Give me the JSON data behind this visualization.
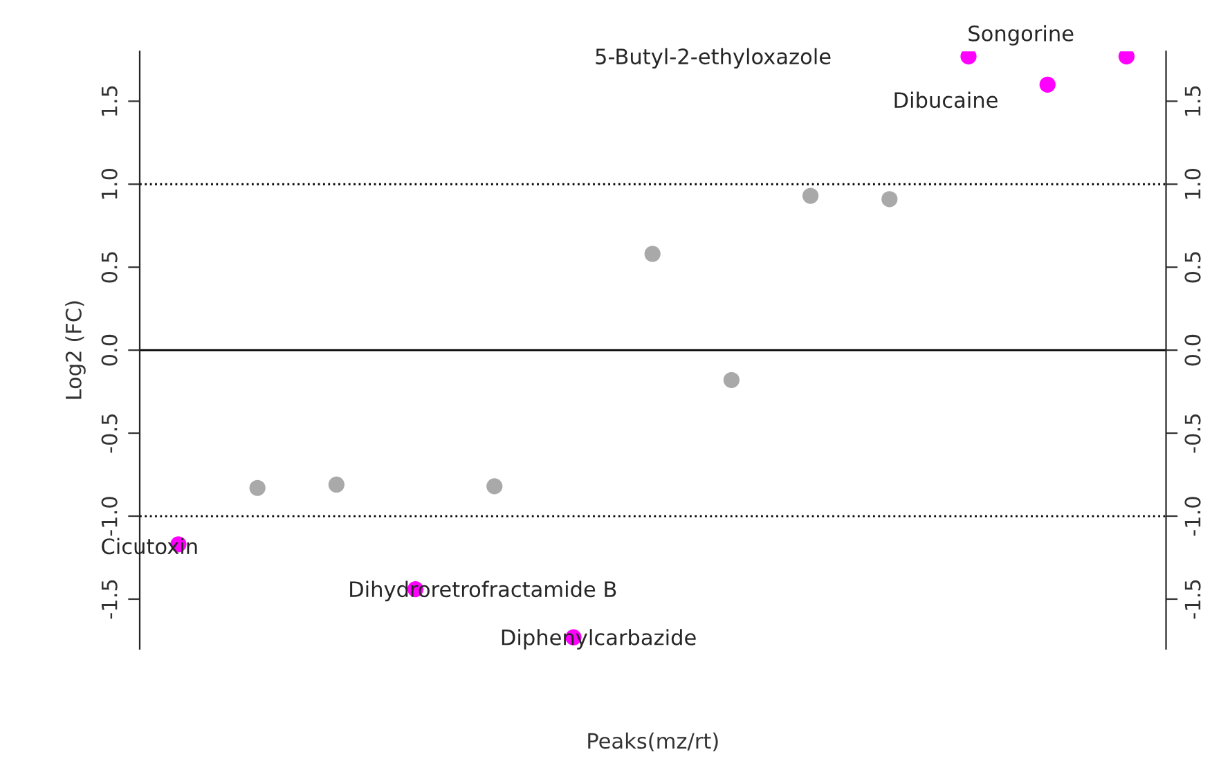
{
  "chart_data": {
    "type": "scatter",
    "xlabel": "Peaks(mz/rt)",
    "ylabel": "Log2 (FC)",
    "categories": [
      null,
      null,
      null,
      null,
      null,
      null,
      null,
      null,
      null,
      null,
      null,
      null,
      null
    ],
    "values": [
      -1.17,
      -0.83,
      -0.81,
      -1.44,
      -0.82,
      -1.73,
      0.58,
      -0.18,
      0.93,
      0.91,
      1.77,
      1.6,
      1.77
    ],
    "colors": [
      "#ff00ff",
      "#a9a9a9",
      "#a9a9a9",
      "#ff00ff",
      "#a9a9a9",
      "#ff00ff",
      "#a9a9a9",
      "#a9a9a9",
      "#a9a9a9",
      "#a9a9a9",
      "#ff00ff",
      "#ff00ff",
      "#ff00ff"
    ],
    "ylim": [
      -1.8,
      1.8
    ],
    "yticks": [
      -1.5,
      {
        "value": -1.0,
        "label": "-1.0"
      },
      -0.5,
      {
        "value": 0.0,
        "label": "0.0"
      },
      0.5,
      {
        "value": 1.0,
        "label": "1.0"
      },
      1.5
    ],
    "y2lim": [
      -1.8,
      1.8
    ],
    "y2ticks": [
      -1.5,
      {
        "value": -1.0,
        "label": "-1.0"
      },
      -0.5,
      {
        "value": 0.0,
        "label": "0.0"
      },
      0.5,
      {
        "value": 1.0,
        "label": "1.0"
      },
      1.5
    ],
    "ref_lines": [
      {
        "axis": "y",
        "value": 1.0,
        "line_style": "dotted"
      },
      {
        "axis": "y",
        "value": 0.0,
        "line_style": "solid"
      },
      {
        "axis": "y",
        "value": -1.0,
        "line_style": "dotted"
      }
    ],
    "annotations": [
      "Cicutoxin",
      "Dihydroretrofractamide B",
      "Diphenylcarbazide",
      "5-Butyl-2-ethyloxazole",
      "Songorine",
      "Dibucaine"
    ],
    "marker": "circle",
    "grid": false,
    "legend": false
  }
}
